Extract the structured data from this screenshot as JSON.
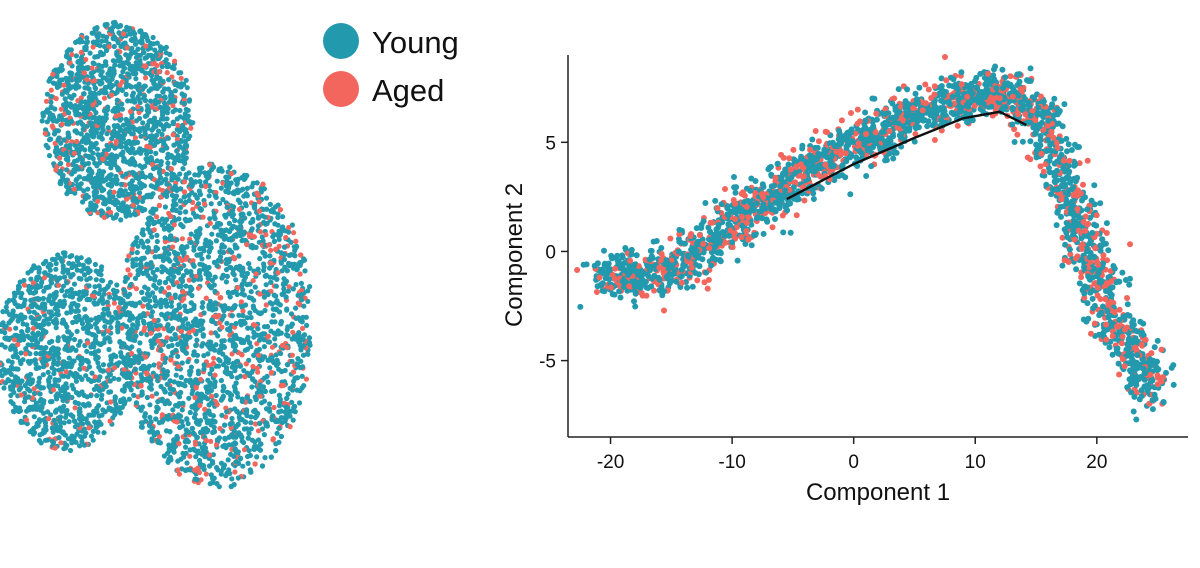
{
  "colors": {
    "young": "#2399ad",
    "aged": "#f2665e",
    "trajectory": "#111111",
    "axis": "#222222"
  },
  "legend": {
    "position": "top-center",
    "entries": [
      {
        "label": "Young",
        "color": "#2399ad"
      },
      {
        "label": "Aged",
        "color": "#f2665e"
      }
    ]
  },
  "chart_data": [
    {
      "type": "scatter",
      "description_of_axes": "none",
      "axes_visible": false,
      "grid": false,
      "groups": [
        "Young",
        "Aged"
      ],
      "clusters": [
        {
          "center": [
            -0.55,
            0.62
          ],
          "spread": [
            0.35,
            0.38
          ],
          "aged_fraction": 0.12
        },
        {
          "center": [
            -0.1,
            -0.15
          ],
          "spread": [
            0.45,
            0.62
          ],
          "aged_fraction": 0.16
        },
        {
          "center": [
            -0.78,
            -0.25
          ],
          "spread": [
            0.33,
            0.38
          ],
          "aged_fraction": 0.08
        }
      ]
    },
    {
      "type": "scatter",
      "xlabel": "Component 1",
      "ylabel": "Component 2",
      "xlim": [
        -23.5,
        27.5
      ],
      "ylim": [
        -8.5,
        9.0
      ],
      "xticks": [
        -20,
        -10,
        0,
        10,
        20
      ],
      "yticks": [
        -5,
        0,
        5
      ],
      "grid": false,
      "series": [
        {
          "name": "Young",
          "color": "#2399ad"
        },
        {
          "name": "Aged",
          "color": "#f2665e"
        }
      ],
      "trajectory": [
        [
          -5.5,
          2.4
        ],
        [
          0,
          4.0
        ],
        [
          5,
          5.2
        ],
        [
          9,
          6.1
        ],
        [
          12,
          6.4
        ],
        [
          14.2,
          5.8
        ]
      ],
      "point_backbone": [
        [
          -20.5,
          -1.0
        ],
        [
          -18,
          -1.4
        ],
        [
          -15,
          -0.8
        ],
        [
          -10,
          1.2
        ],
        [
          -5,
          3.2
        ],
        [
          0,
          5.0
        ],
        [
          5,
          6.3
        ],
        [
          9,
          7.0
        ],
        [
          12.5,
          7.3
        ],
        [
          15,
          6.3
        ],
        [
          17,
          3.8
        ],
        [
          19,
          0.3
        ],
        [
          21.5,
          -3.3
        ],
        [
          24,
          -5.5
        ],
        [
          24.5,
          -6.8
        ]
      ],
      "aged_fraction": 0.3,
      "n_points": 2600
    }
  ]
}
